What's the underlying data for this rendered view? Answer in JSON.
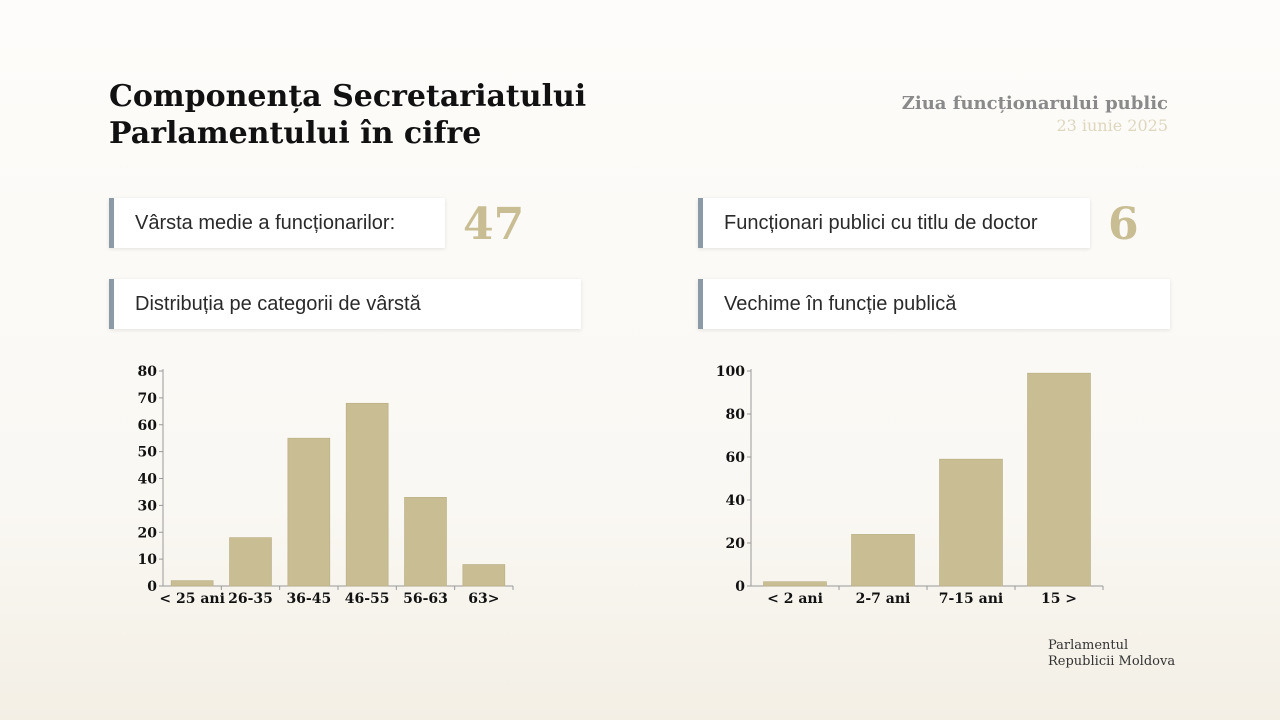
{
  "header": {
    "title_line1": "Componența Secretariatului",
    "title_line2": "Parlamentului în cifre",
    "event_name": "Ziua funcționarului public",
    "event_date": "23 iunie 2025"
  },
  "stats": {
    "avg_age_label": "Vârsta medie a funcționarilor:",
    "avg_age_value": "47",
    "doctors_label": "Funcționari publici cu titlu de doctor",
    "doctors_value": "6"
  },
  "sections": {
    "age_distribution": "Distribuția pe categorii de vârstă",
    "seniority": "Vechime în funcție publică"
  },
  "footer": {
    "line1": "Parlamentul",
    "line2": "Republicii Moldova"
  },
  "colors": {
    "bar": "#c9bd93",
    "accent_border": "#8c9aa7",
    "number": "#c9bd93"
  },
  "chart_data": [
    {
      "type": "bar",
      "title": "Distribuția pe categorii de vârstă",
      "categories": [
        "< 25 ani",
        "26-35",
        "36-45",
        "46-55",
        "56-63",
        "63>"
      ],
      "values": [
        2,
        18,
        55,
        68,
        33,
        8
      ],
      "ylim": [
        0,
        80
      ],
      "yticks": [
        0,
        10,
        20,
        30,
        40,
        50,
        60,
        70,
        80
      ],
      "xlabel": "",
      "ylabel": "",
      "grid": false
    },
    {
      "type": "bar",
      "title": "Vechime în funcție publică",
      "categories": [
        "< 2 ani",
        "2-7 ani",
        "7-15 ani",
        "15 >"
      ],
      "values": [
        2,
        24,
        59,
        99
      ],
      "ylim": [
        0,
        100
      ],
      "yticks": [
        0,
        20,
        40,
        60,
        80,
        100
      ],
      "xlabel": "",
      "ylabel": "",
      "grid": false
    }
  ]
}
